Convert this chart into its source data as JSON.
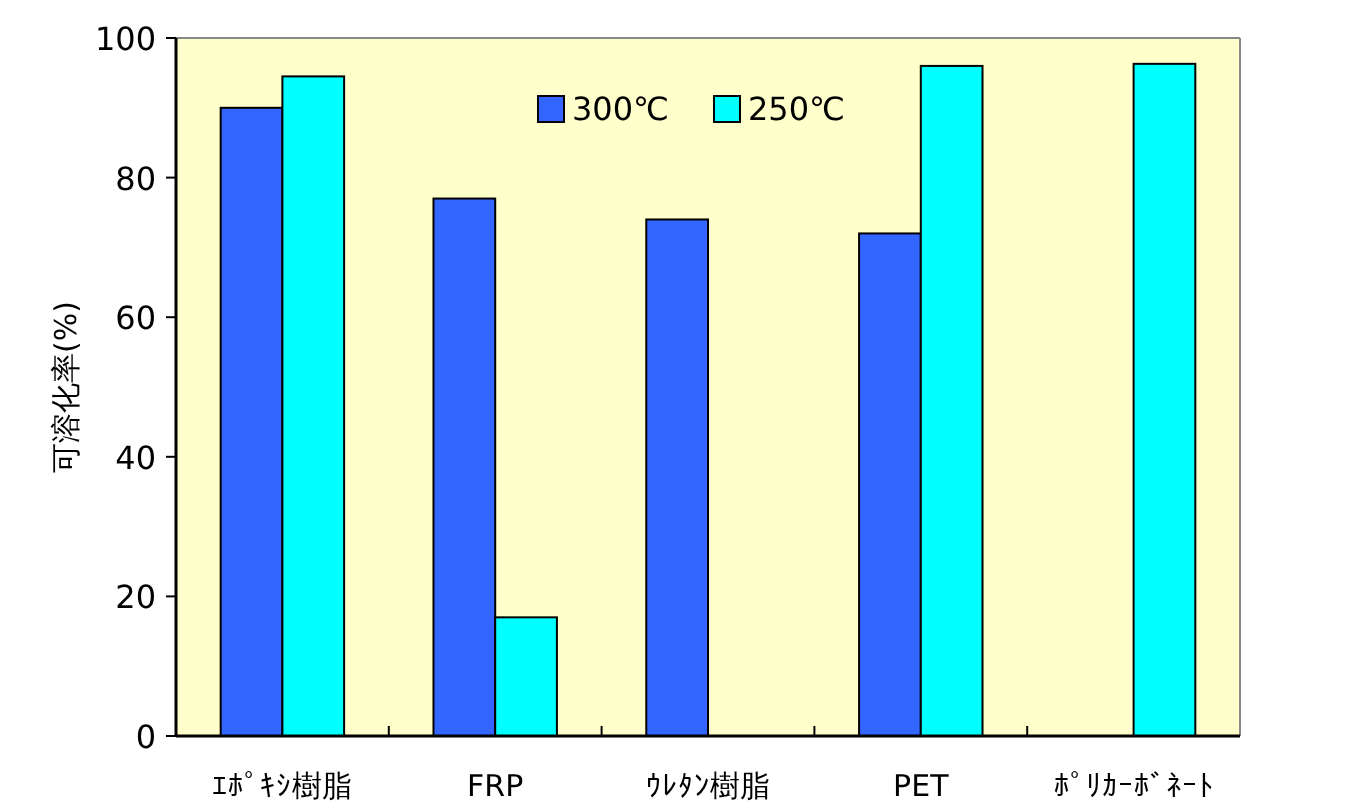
{
  "chart_data": {
    "type": "bar",
    "ylabel": "可溶化率(%)",
    "categories": [
      "ｴﾎﾟｷｼ樹脂",
      "FRP",
      "ｳﾚﾀﾝ樹脂",
      "PET",
      "ﾎﾟﾘｶｰﾎﾞﾈｰﾄ"
    ],
    "series": [
      {
        "name": "300℃",
        "color": "#3366ff",
        "values": [
          90,
          77,
          74,
          72,
          null
        ]
      },
      {
        "name": "250℃",
        "color": "#00ffff",
        "values": [
          94.5,
          17,
          null,
          96,
          96.3
        ]
      }
    ],
    "ylim": [
      0,
      100
    ],
    "yticks": [
      0,
      20,
      40,
      60,
      80,
      100
    ],
    "legend": "top",
    "grid": false
  }
}
